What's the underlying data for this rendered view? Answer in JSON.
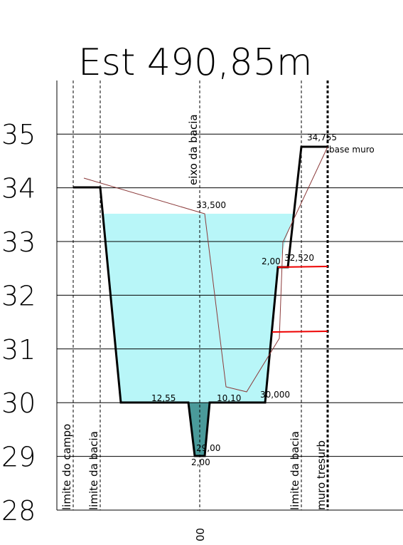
{
  "title": "Est 490,85m",
  "elevations": [
    35,
    34,
    33,
    32,
    31,
    30,
    29,
    28
  ],
  "vertical_labels": [
    "limite do campo",
    "limite da bacia",
    "eixo da bacia",
    "limite da bacia",
    "muro tresurb"
  ],
  "annotations": [
    "33,500",
    "34,755",
    "base muro",
    "2,00",
    "32,520",
    "12,55",
    "10,10",
    "30,000",
    "29,00",
    "2,00"
  ],
  "station_label": "00"
}
